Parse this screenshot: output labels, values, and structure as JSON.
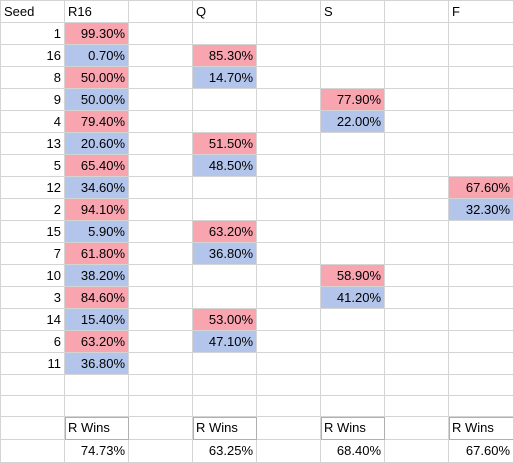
{
  "sheet": {
    "header": [
      "Seed",
      "R16",
      "",
      "Q",
      "",
      "S",
      "",
      "F"
    ],
    "rows": [
      [
        "1",
        "99.30%",
        "",
        "",
        "",
        "",
        "",
        ""
      ],
      [
        "16",
        "0.70%",
        "",
        "85.30%",
        "",
        "",
        "",
        ""
      ],
      [
        "8",
        "50.00%",
        "",
        "14.70%",
        "",
        "",
        "",
        ""
      ],
      [
        "9",
        "50.00%",
        "",
        "",
        "",
        "77.90%",
        "",
        ""
      ],
      [
        "4",
        "79.40%",
        "",
        "",
        "",
        "22.00%",
        "",
        ""
      ],
      [
        "13",
        "20.60%",
        "",
        "51.50%",
        "",
        "",
        "",
        ""
      ],
      [
        "5",
        "65.40%",
        "",
        "48.50%",
        "",
        "",
        "",
        ""
      ],
      [
        "12",
        "34.60%",
        "",
        "",
        "",
        "",
        "",
        "67.60%"
      ],
      [
        "2",
        "94.10%",
        "",
        "",
        "",
        "",
        "",
        "32.30%"
      ],
      [
        "15",
        "5.90%",
        "",
        "63.20%",
        "",
        "",
        "",
        ""
      ],
      [
        "7",
        "61.80%",
        "",
        "36.80%",
        "",
        "",
        "",
        ""
      ],
      [
        "10",
        "38.20%",
        "",
        "",
        "",
        "58.90%",
        "",
        ""
      ],
      [
        "3",
        "84.60%",
        "",
        "",
        "",
        "41.20%",
        "",
        ""
      ],
      [
        "14",
        "15.40%",
        "",
        "53.00%",
        "",
        "",
        "",
        ""
      ],
      [
        "6",
        "63.20%",
        "",
        "47.10%",
        "",
        "",
        "",
        ""
      ],
      [
        "11",
        "36.80%",
        "",
        "",
        "",
        "",
        "",
        ""
      ],
      [
        "",
        "",
        "",
        "",
        "",
        "",
        "",
        ""
      ],
      [
        "",
        "",
        "",
        "",
        "",
        "",
        "",
        ""
      ],
      [
        "",
        "R Wins",
        "",
        "R Wins",
        "",
        "R Wins",
        "",
        "R Wins"
      ],
      [
        "",
        "74.73%",
        "",
        "63.25%",
        "",
        "68.40%",
        "",
        "67.60%"
      ]
    ],
    "fills": {
      "0": {
        "1": "pink"
      },
      "1": {
        "1": "blue",
        "3": "pink"
      },
      "2": {
        "1": "pink",
        "3": "blue"
      },
      "3": {
        "1": "blue",
        "5": "pink"
      },
      "4": {
        "1": "pink",
        "5": "blue"
      },
      "5": {
        "1": "blue",
        "3": "pink"
      },
      "6": {
        "1": "pink",
        "3": "blue"
      },
      "7": {
        "1": "blue",
        "7": "pink"
      },
      "8": {
        "1": "pink",
        "7": "blue"
      },
      "9": {
        "1": "blue",
        "3": "pink"
      },
      "10": {
        "1": "pink",
        "3": "blue"
      },
      "11": {
        "1": "blue",
        "5": "pink"
      },
      "12": {
        "1": "pink",
        "5": "blue"
      },
      "13": {
        "1": "blue",
        "3": "pink"
      },
      "14": {
        "1": "pink",
        "3": "blue"
      },
      "15": {
        "1": "blue"
      }
    },
    "colors": {
      "pink": "#f8a5b0",
      "blue": "#b3c5ea",
      "gridline": "#d4d4d4"
    }
  }
}
